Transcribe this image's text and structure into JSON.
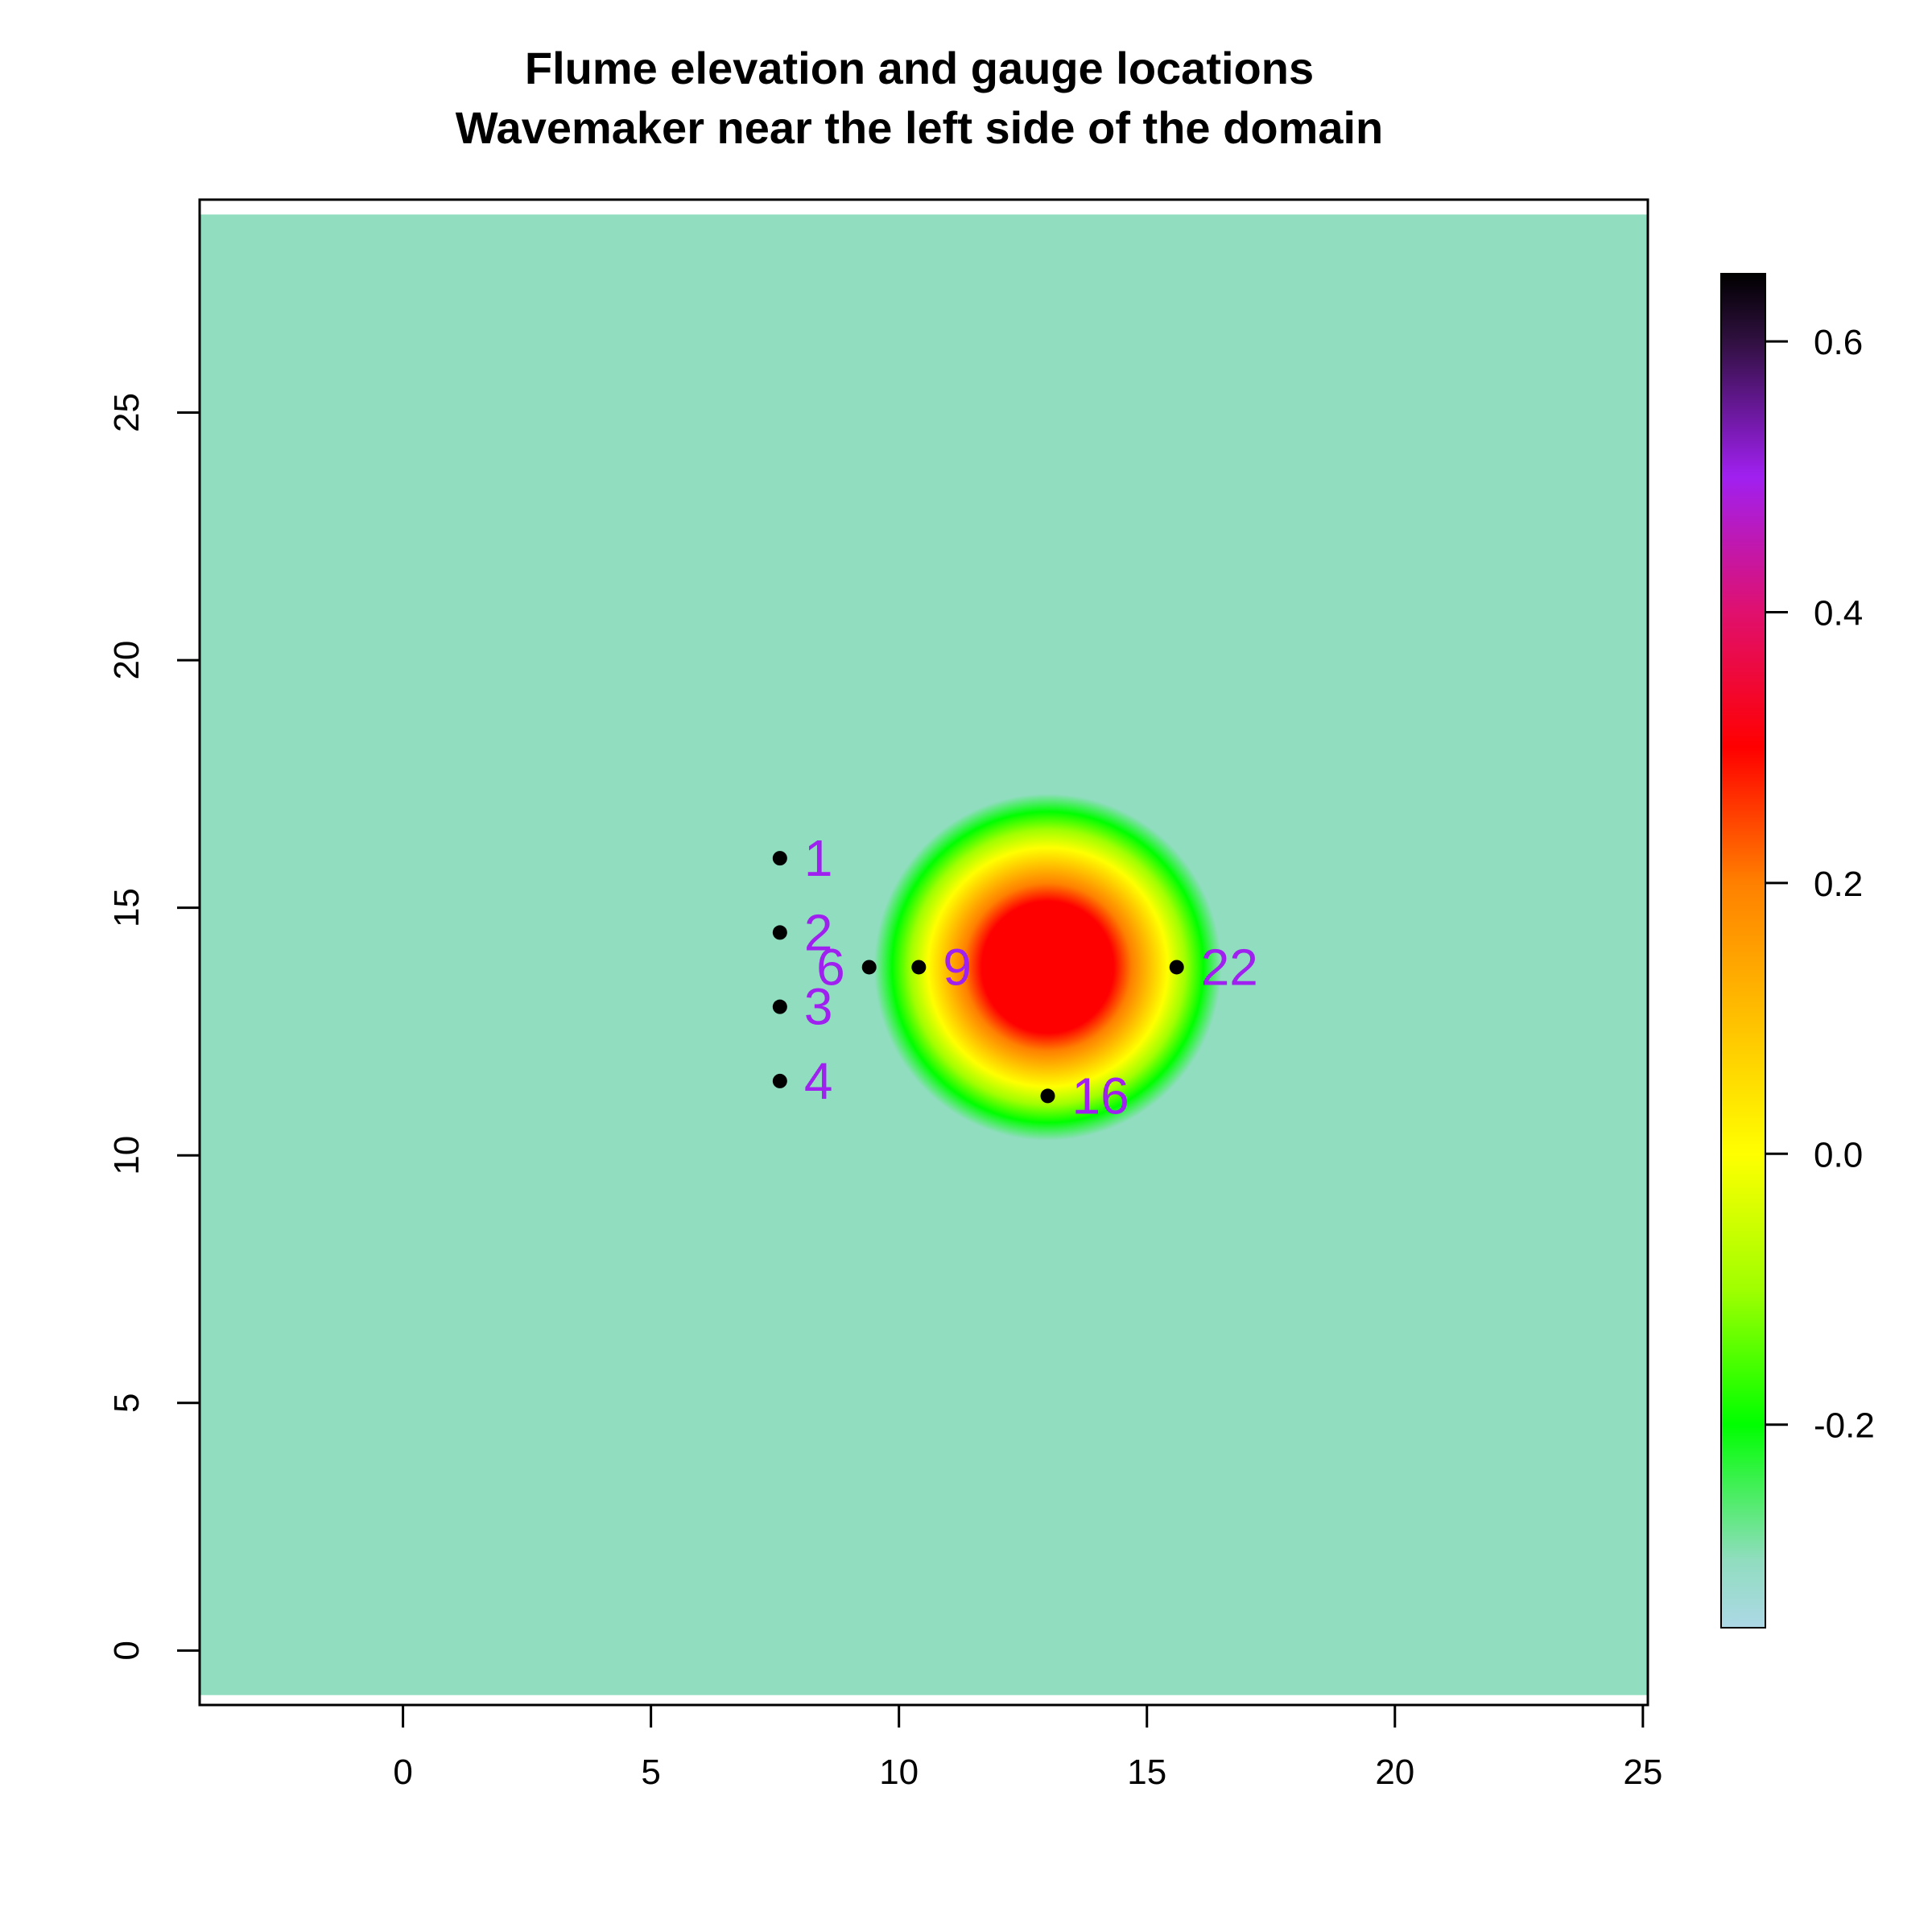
{
  "chart_data": {
    "type": "heatmap",
    "title": [
      "Flume elevation and gauge locations",
      "Wavemaker near the left side of the domain"
    ],
    "xlabel": "",
    "ylabel": "",
    "xlim": [
      -4.1,
      25.1
    ],
    "ylim": [
      -1.1,
      29.3
    ],
    "domain": {
      "x": [
        -4.1,
        25.1
      ],
      "y": [
        -0.9,
        29.0
      ]
    },
    "x_ticks": [
      0,
      5,
      10,
      15,
      20,
      25
    ],
    "y_ticks": [
      0,
      5,
      10,
      15,
      20,
      25
    ],
    "background_value": -0.3,
    "bump": {
      "center": [
        13.0,
        13.8
      ],
      "radius": 3.5,
      "peak": 0.3,
      "rim": -0.3
    },
    "colorbar": {
      "min": -0.35,
      "max": 0.65,
      "ticks": [
        -0.2,
        0.0,
        0.2,
        0.4,
        0.6
      ],
      "tick_labels": [
        "-0.2",
        "0.0",
        "0.2",
        "0.4",
        "0.6"
      ],
      "stops": [
        {
          "value": -0.35,
          "color": "#add8e6"
        },
        {
          "value": -0.3,
          "color": "#90ddbf"
        },
        {
          "value": -0.2,
          "color": "#00ff00"
        },
        {
          "value": -0.1,
          "color": "#a0ff00"
        },
        {
          "value": 0.0,
          "color": "#ffff00"
        },
        {
          "value": 0.1,
          "color": "#ffc000"
        },
        {
          "value": 0.2,
          "color": "#ff8000"
        },
        {
          "value": 0.3,
          "color": "#ff0000"
        },
        {
          "value": 0.4,
          "color": "#e0106e"
        },
        {
          "value": 0.5,
          "color": "#a020f0"
        },
        {
          "value": 0.6,
          "color": "#301040"
        },
        {
          "value": 0.65,
          "color": "#000000"
        }
      ]
    },
    "gauges": [
      {
        "label": "1",
        "x": 7.6,
        "y": 16.0,
        "label_side": "right"
      },
      {
        "label": "2",
        "x": 7.6,
        "y": 14.5,
        "label_side": "right"
      },
      {
        "label": "3",
        "x": 7.6,
        "y": 13.0,
        "label_side": "right"
      },
      {
        "label": "4",
        "x": 7.6,
        "y": 11.5,
        "label_side": "right"
      },
      {
        "label": "6",
        "x": 9.4,
        "y": 13.8,
        "label_side": "left"
      },
      {
        "label": "9",
        "x": 10.4,
        "y": 13.8,
        "label_side": "right"
      },
      {
        "label": "16",
        "x": 13.0,
        "y": 11.2,
        "label_side": "right"
      },
      {
        "label": "22",
        "x": 15.6,
        "y": 13.8,
        "label_side": "right"
      }
    ],
    "gauge_color": "#a020f0"
  }
}
